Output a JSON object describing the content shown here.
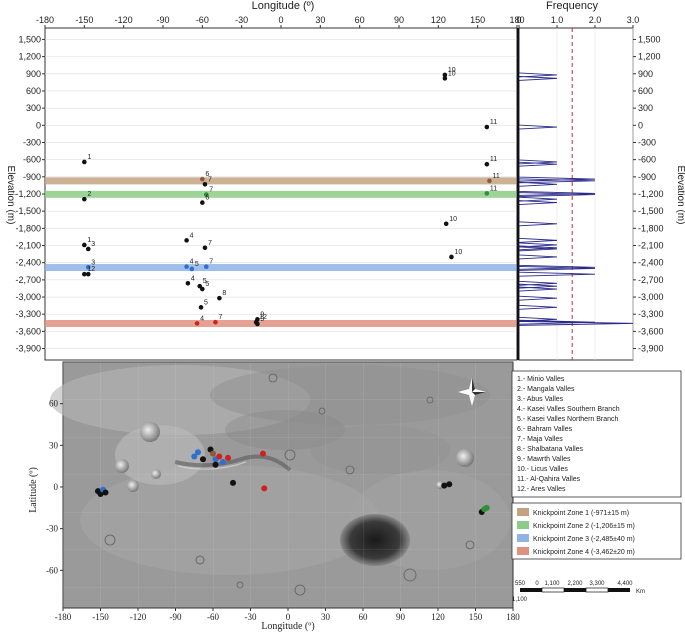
{
  "top_axis_label": "Longitude (º)",
  "frequency_label": "Frequency",
  "left_axis_label": "Elevation (m)",
  "right_axis_label": "Elevation (m)",
  "map_x_label": "Longitude (º)",
  "map_y_label": "Latitude (º)",
  "legend_items": [
    "1.- Minio Valles",
    "2.- Mangala Valles",
    "3.- Abus Valles",
    "4.- Kasei Valles Southern Branch",
    "5.- Kasei Valles Northern Branch",
    "6.- Bahram Valles",
    "7.- Maja Valles",
    "8.- Shalbatana Valles",
    "9.- Mawrth Valles",
    "10.- Licus Valles",
    "11.- Al-Qahira Valles",
    "12.- Ares Valles"
  ],
  "zones": [
    {
      "name": "Knickpoint Zone 1 (-971±15 m)",
      "elev": -971,
      "color": "#c4a383"
    },
    {
      "name": "Knickpoint Zone 2 (-1,206±15 m)",
      "elev": -1206,
      "color": "#8ccc86"
    },
    {
      "name": "Knickpoint Zone 3 (-2,485±40 m)",
      "elev": -2485,
      "color": "#8fb3e6"
    },
    {
      "name": "Knickpoint Zone 4 (-3,462±20 m)",
      "elev": -3462,
      "color": "#e09080"
    }
  ],
  "scale_bar": {
    "top_labels": [
      "550",
      "0",
      "1,100",
      "2,200",
      "3,300",
      "4,400"
    ],
    "left_label": "1,100",
    "unit": "Km"
  },
  "chart_data": [
    {
      "type": "scatter",
      "xlabel": "Longitude (º)",
      "ylabel": "Elevation (m)",
      "xlim": [
        -180,
        180
      ],
      "ylim": [
        -4100,
        1700
      ],
      "x_ticks": [
        "-180",
        "-150",
        "-120",
        "-90",
        "-60",
        "-30",
        "0",
        "30",
        "60",
        "90",
        "120",
        "150",
        "180"
      ],
      "y_ticks": [
        "1,500",
        "1,200",
        "900",
        "600",
        "300",
        "0",
        "-300",
        "-600",
        "-900",
        "-1,200",
        "-1,500",
        "-1,800",
        "-2,100",
        "-2,400",
        "-2,700",
        "-3,000",
        "-3,300",
        "-3,600",
        "-3,900"
      ],
      "points": [
        {
          "x": 125,
          "y": 880,
          "label": "10",
          "color": "black"
        },
        {
          "x": 125,
          "y": 820,
          "label": "10",
          "color": "black"
        },
        {
          "x": 157,
          "y": -30,
          "label": "11",
          "color": "black"
        },
        {
          "x": -150,
          "y": -640,
          "label": "1",
          "color": "black"
        },
        {
          "x": 157,
          "y": -680,
          "label": "11",
          "color": "black"
        },
        {
          "x": -60,
          "y": -940,
          "label": "6",
          "color": "brown"
        },
        {
          "x": 159,
          "y": -970,
          "label": "11",
          "color": "brown"
        },
        {
          "x": -58,
          "y": -1030,
          "label": "7",
          "color": "black"
        },
        {
          "x": -57,
          "y": -1210,
          "label": "7",
          "color": "green"
        },
        {
          "x": 157,
          "y": -1190,
          "label": "11",
          "color": "green"
        },
        {
          "x": -150,
          "y": -1290,
          "label": "2",
          "color": "black"
        },
        {
          "x": -60,
          "y": -1350,
          "label": "6",
          "color": "black"
        },
        {
          "x": 126,
          "y": -1720,
          "label": "10",
          "color": "black"
        },
        {
          "x": -72,
          "y": -2010,
          "label": "4",
          "color": "black"
        },
        {
          "x": -150,
          "y": -2090,
          "label": "1",
          "color": "black"
        },
        {
          "x": -58,
          "y": -2140,
          "label": "7",
          "color": "black"
        },
        {
          "x": -147,
          "y": -2160,
          "label": "3",
          "color": "black"
        },
        {
          "x": 130,
          "y": -2300,
          "label": "10",
          "color": "black"
        },
        {
          "x": -147,
          "y": -2480,
          "label": "3",
          "color": "blue"
        },
        {
          "x": -72,
          "y": -2470,
          "label": "4",
          "color": "blue"
        },
        {
          "x": -68,
          "y": -2510,
          "label": "5",
          "color": "blue"
        },
        {
          "x": -57,
          "y": -2470,
          "label": "7",
          "color": "blue"
        },
        {
          "x": -150,
          "y": -2600,
          "label": "1",
          "color": "black"
        },
        {
          "x": -147,
          "y": -2600,
          "label": "2",
          "color": "black"
        },
        {
          "x": -71,
          "y": -2760,
          "label": "4",
          "color": "black"
        },
        {
          "x": -62,
          "y": -2810,
          "label": "5",
          "color": "black"
        },
        {
          "x": -60,
          "y": -2860,
          "label": "5",
          "color": "black"
        },
        {
          "x": -47,
          "y": -3020,
          "label": "8",
          "color": "black"
        },
        {
          "x": -61,
          "y": -3180,
          "label": "5",
          "color": "black"
        },
        {
          "x": -18,
          "y": -3390,
          "label": "9",
          "color": "black"
        },
        {
          "x": -19,
          "y": -3440,
          "label": "12",
          "color": "black"
        },
        {
          "x": -64,
          "y": -3460,
          "label": "4",
          "color": "red"
        },
        {
          "x": -50,
          "y": -3440,
          "label": "7",
          "color": "red"
        },
        {
          "x": -18,
          "y": -3470,
          "label": "9",
          "color": "black"
        }
      ]
    },
    {
      "type": "line",
      "xlabel": "Frequency",
      "ylabel": "Elevation (m)",
      "xlim": [
        0,
        3.0
      ],
      "x_ticks": [
        "0",
        "1.0",
        "2.0",
        "3.0"
      ],
      "ylim": [
        -4100,
        1700
      ],
      "threshold_x": 1.4,
      "spikes": [
        {
          "y": 880,
          "f": 1.0
        },
        {
          "y": 820,
          "f": 1.0
        },
        {
          "y": -30,
          "f": 1.0
        },
        {
          "y": -640,
          "f": 1.0
        },
        {
          "y": -680,
          "f": 1.0
        },
        {
          "y": -940,
          "f": 2.0
        },
        {
          "y": -970,
          "f": 2.0
        },
        {
          "y": -1030,
          "f": 1.0
        },
        {
          "y": -1190,
          "f": 2.0
        },
        {
          "y": -1210,
          "f": 2.0
        },
        {
          "y": -1290,
          "f": 1.0
        },
        {
          "y": -1350,
          "f": 1.0
        },
        {
          "y": -1720,
          "f": 1.0
        },
        {
          "y": -2010,
          "f": 1.0
        },
        {
          "y": -2090,
          "f": 1.0
        },
        {
          "y": -2140,
          "f": 1.0
        },
        {
          "y": -2160,
          "f": 1.0
        },
        {
          "y": -2300,
          "f": 1.0
        },
        {
          "y": -2480,
          "f": 2.0
        },
        {
          "y": -2500,
          "f": 2.0
        },
        {
          "y": -2600,
          "f": 2.0
        },
        {
          "y": -2760,
          "f": 1.0
        },
        {
          "y": -2810,
          "f": 1.0
        },
        {
          "y": -2860,
          "f": 1.0
        },
        {
          "y": -3020,
          "f": 1.0
        },
        {
          "y": -3180,
          "f": 1.0
        },
        {
          "y": -3390,
          "f": 1.0
        },
        {
          "y": -3440,
          "f": 2.0
        },
        {
          "y": -3460,
          "f": 3.0
        }
      ]
    },
    {
      "type": "scatter",
      "xlabel": "Longitude (º)",
      "ylabel": "Latitude (º)",
      "xlim": [
        -180,
        180
      ],
      "ylim": [
        -90,
        90
      ],
      "x_ticks": [
        "-180",
        "-150",
        "-120",
        "-90",
        "-60",
        "-30",
        "0",
        "30",
        "60",
        "90",
        "120",
        "150",
        "180"
      ],
      "y_ticks": [
        "60",
        "30",
        "0",
        "-30",
        "-60"
      ],
      "points": [
        {
          "x": -152,
          "y": -3,
          "color": "black"
        },
        {
          "x": -150,
          "y": -5,
          "color": "black"
        },
        {
          "x": -148,
          "y": -2,
          "color": "blue"
        },
        {
          "x": -146,
          "y": -4,
          "color": "black"
        },
        {
          "x": -75,
          "y": 22,
          "color": "blue"
        },
        {
          "x": -72,
          "y": 25,
          "color": "blue"
        },
        {
          "x": -68,
          "y": 20,
          "color": "black"
        },
        {
          "x": -62,
          "y": 27,
          "color": "black"
        },
        {
          "x": -60,
          "y": 24,
          "color": "brown"
        },
        {
          "x": -58,
          "y": 20,
          "color": "blue"
        },
        {
          "x": -55,
          "y": 22,
          "color": "red"
        },
        {
          "x": -52,
          "y": 18,
          "color": "blue"
        },
        {
          "x": -48,
          "y": 21,
          "color": "red"
        },
        {
          "x": -58,
          "y": 16,
          "color": "black"
        },
        {
          "x": -44,
          "y": 3,
          "color": "black"
        },
        {
          "x": -20,
          "y": 24,
          "color": "red"
        },
        {
          "x": -19,
          "y": -1,
          "color": "red"
        },
        {
          "x": 125,
          "y": 1,
          "color": "black"
        },
        {
          "x": 129,
          "y": 2,
          "color": "black"
        },
        {
          "x": 155,
          "y": -18,
          "color": "black"
        },
        {
          "x": 157,
          "y": -16,
          "color": "green"
        },
        {
          "x": 159,
          "y": -15,
          "color": "green"
        }
      ]
    }
  ]
}
